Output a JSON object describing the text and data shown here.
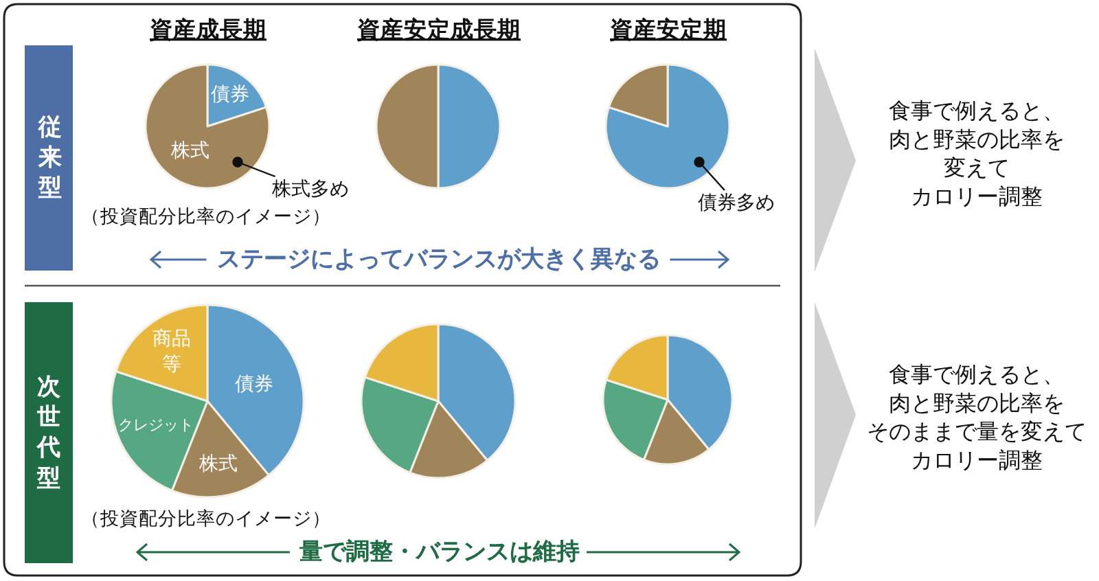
{
  "chart_data": [
    {
      "type": "pie",
      "title": "資産成長期",
      "categories": [
        "債券",
        "株式"
      ],
      "values": [
        20,
        80
      ],
      "colors": [
        "#5f9fcc",
        "#a0845a"
      ],
      "annotations": [
        "株式多め",
        "（投資配分比率のイメージ）"
      ]
    },
    {
      "type": "pie",
      "title": "資産安定成長期",
      "categories": [
        null,
        null
      ],
      "values": [
        50,
        50
      ],
      "colors": [
        "#5f9fcc",
        "#a0845a"
      ]
    },
    {
      "type": "pie",
      "title": "資産安定期",
      "categories": [
        null,
        null
      ],
      "values": [
        80,
        20
      ],
      "colors": [
        "#5f9fcc",
        "#a0845a"
      ],
      "annotations": [
        "債券多め"
      ]
    },
    {
      "type": "other",
      "title": "従来型",
      "annotations": [
        "ステージによってバランスが大きく異なる",
        "食事で例えると、肉と野菜の比率を変えてカロリー調整"
      ]
    },
    {
      "type": "pie",
      "categories": [
        "債券",
        "株式",
        "クレジット",
        "商品等"
      ],
      "values": [
        39,
        17,
        24,
        20
      ],
      "colors": [
        "#5f9fcc",
        "#a0845a",
        "#55a882",
        "#e8b83e"
      ],
      "annotations": [
        "（投資配分比率のイメージ）"
      ]
    },
    {
      "type": "pie",
      "categories": [
        null,
        null,
        null,
        null
      ],
      "values": [
        39,
        17,
        24,
        20
      ],
      "colors": [
        "#5f9fcc",
        "#a0845a",
        "#55a882",
        "#e8b83e"
      ]
    },
    {
      "type": "pie",
      "categories": [
        null,
        null,
        null,
        null
      ],
      "values": [
        39,
        17,
        24,
        20
      ],
      "colors": [
        "#5f9fcc",
        "#a0845a",
        "#55a882",
        "#e8b83e"
      ]
    },
    {
      "type": "other",
      "title": "次世代型",
      "annotations": [
        "量で調整・バランスは維持",
        "食事で例えると、肉と野菜の比率をそのままで量を変えてカロリー調整"
      ]
    }
  ]
}
